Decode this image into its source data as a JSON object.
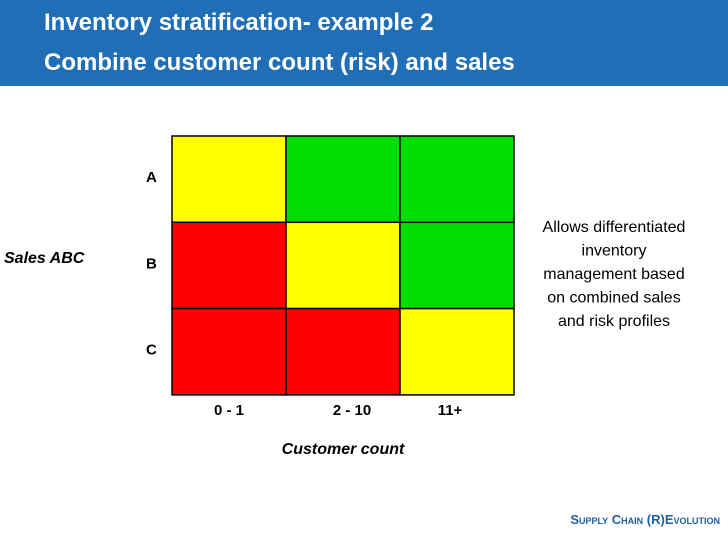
{
  "header": {
    "title_lines": [
      "Inventory stratification- example 2",
      "Combine customer count (risk) and sales"
    ]
  },
  "matrix": {
    "y_axis_label": "Sales ABC",
    "x_axis_label": "Customer count",
    "rows": [
      "A",
      "B",
      "C"
    ],
    "columns": [
      "0 - 1",
      "2 - 10",
      "11+"
    ],
    "cell_colors": [
      [
        "#ffff00",
        "#00dd00",
        "#00dd00"
      ],
      [
        "#ff0000",
        "#ffff00",
        "#00dd00"
      ],
      [
        "#ff0000",
        "#ff0000",
        "#ffff00"
      ]
    ]
  },
  "annotation": {
    "lines": [
      "Allows differentiated",
      "inventory",
      "management based",
      "on combined sales",
      "and risk profiles"
    ]
  },
  "footer": {
    "brand": "Supply Chain (R)Evolution"
  }
}
